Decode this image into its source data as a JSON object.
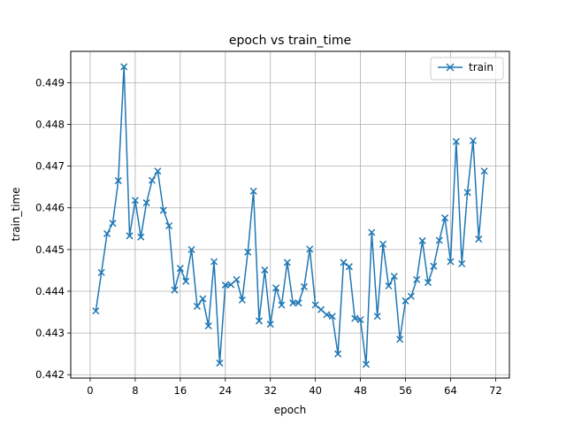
{
  "chart_data": {
    "type": "line",
    "title": "epoch vs train_time",
    "xlabel": "epoch",
    "ylabel": "train_time",
    "xlim": [
      -3.45,
      74.45
    ],
    "ylim": [
      0.44192,
      0.44975
    ],
    "xticks": [
      0,
      8,
      16,
      24,
      32,
      40,
      48,
      56,
      64,
      72
    ],
    "yticks": [
      0.442,
      0.443,
      0.444,
      0.445,
      0.446,
      0.447,
      0.448,
      0.449
    ],
    "ytick_labels": [
      "0.442",
      "0.443",
      "0.444",
      "0.445",
      "0.446",
      "0.447",
      "0.448",
      "0.449"
    ],
    "grid": true,
    "legend_position": "top-right",
    "color": "#1f77b4",
    "marker": "x",
    "series": [
      {
        "name": "train",
        "x": [
          1,
          2,
          3,
          4,
          5,
          6,
          7,
          8,
          9,
          10,
          11,
          12,
          13,
          14,
          15,
          16,
          17,
          18,
          19,
          20,
          21,
          22,
          23,
          24,
          25,
          26,
          27,
          28,
          29,
          30,
          31,
          32,
          33,
          34,
          35,
          36,
          37,
          38,
          39,
          40,
          41,
          42,
          43,
          44,
          45,
          46,
          47,
          48,
          49,
          50,
          51,
          52,
          53,
          54,
          55,
          56,
          57,
          58,
          59,
          60,
          61,
          62,
          63,
          64,
          65,
          66,
          67,
          68,
          69,
          70
        ],
        "values": [
          0.44353,
          0.44445,
          0.44538,
          0.44563,
          0.44665,
          0.44938,
          0.44533,
          0.44618,
          0.4453,
          0.44612,
          0.44666,
          0.44688,
          0.44594,
          0.44557,
          0.44403,
          0.44455,
          0.44424,
          0.445,
          0.44364,
          0.44382,
          0.44317,
          0.44471,
          0.44228,
          0.44415,
          0.44416,
          0.44428,
          0.44379,
          0.44494,
          0.4464,
          0.44329,
          0.44451,
          0.44321,
          0.44408,
          0.44367,
          0.44469,
          0.44372,
          0.44372,
          0.44411,
          0.44501,
          0.44367,
          0.44356,
          0.44344,
          0.4434,
          0.4425,
          0.44469,
          0.44459,
          0.44335,
          0.44332,
          0.44225,
          0.44541,
          0.4434,
          0.44513,
          0.44413,
          0.44436,
          0.44285,
          0.44377,
          0.44388,
          0.44428,
          0.44521,
          0.44421,
          0.4446,
          0.44522,
          0.44576,
          0.44471,
          0.44759,
          0.44466,
          0.44637,
          0.44761,
          0.44525,
          0.44688
        ]
      }
    ]
  }
}
